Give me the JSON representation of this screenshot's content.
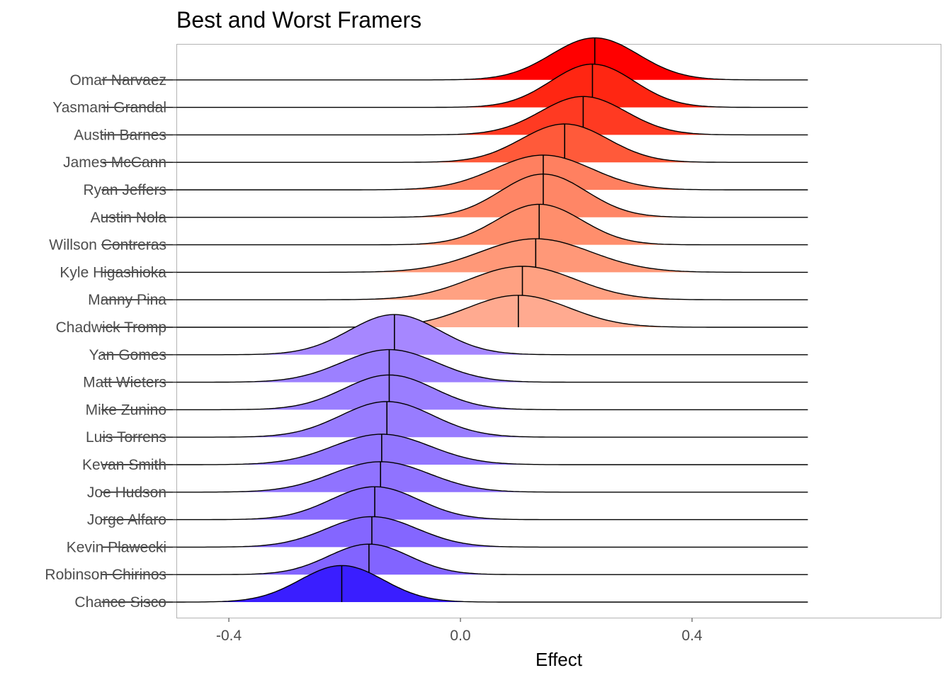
{
  "chart_data": {
    "type": "ridgeline",
    "title": "Best and Worst Framers",
    "xlabel": "Effect",
    "ylabel": "",
    "xlim": [
      -0.49,
      0.83
    ],
    "x_ticks": [
      -0.4,
      0.0,
      0.4
    ],
    "x_tick_labels": [
      "-0.4",
      "0.0",
      "0.4"
    ],
    "support": [
      -0.62,
      0.6
    ],
    "grid": false,
    "legend": "none",
    "line_color": "#000000",
    "series": [
      {
        "name": "Chance Sisco",
        "median": -0.205,
        "sd": 0.072,
        "peak": 1.2,
        "color": "#3a1eff"
      },
      {
        "name": "Robinson Chirinos",
        "median": -0.158,
        "sd": 0.07,
        "peak": 1.0,
        "color": "#8264ff"
      },
      {
        "name": "Kevin Plawecki",
        "median": -0.153,
        "sd": 0.078,
        "peak": 1.0,
        "color": "#8466ff"
      },
      {
        "name": "Jorge Alfaro",
        "median": -0.148,
        "sd": 0.076,
        "peak": 1.08,
        "color": "#8a6cff"
      },
      {
        "name": "Joe Hudson",
        "median": -0.138,
        "sd": 0.084,
        "peak": 1.0,
        "color": "#9073ff"
      },
      {
        "name": "Kevan Smith",
        "median": -0.136,
        "sd": 0.084,
        "peak": 1.0,
        "color": "#9276ff"
      },
      {
        "name": "Luis Torrens",
        "median": -0.127,
        "sd": 0.08,
        "peak": 1.17,
        "color": "#987cff"
      },
      {
        "name": "Mike Zunino",
        "median": -0.123,
        "sd": 0.078,
        "peak": 1.14,
        "color": "#9a7eff"
      },
      {
        "name": "Matt Wieters",
        "median": -0.123,
        "sd": 0.082,
        "peak": 1.07,
        "color": "#9c80ff"
      },
      {
        "name": "Yan Gomes",
        "median": -0.114,
        "sd": 0.078,
        "peak": 1.32,
        "color": "#a687ff"
      },
      {
        "name": "Chadwick Tromp",
        "median": 0.1,
        "sd": 0.088,
        "peak": 1.05,
        "color": "#ffaa90"
      },
      {
        "name": "Manny Pina",
        "median": 0.107,
        "sd": 0.092,
        "peak": 1.1,
        "color": "#ffa182"
      },
      {
        "name": "Kyle Higashioka",
        "median": 0.13,
        "sd": 0.096,
        "peak": 1.1,
        "color": "#ff9878"
      },
      {
        "name": "Willson Contreras",
        "median": 0.136,
        "sd": 0.074,
        "peak": 1.33,
        "color": "#ff8e6c"
      },
      {
        "name": "Austin Nola",
        "median": 0.143,
        "sd": 0.074,
        "peak": 1.42,
        "color": "#ff8666"
      },
      {
        "name": "Ryan Jeffers",
        "median": 0.143,
        "sd": 0.084,
        "peak": 1.14,
        "color": "#ff8060"
      },
      {
        "name": "James McCann",
        "median": 0.18,
        "sd": 0.075,
        "peak": 1.26,
        "color": "#ff5a3a"
      },
      {
        "name": "Austin Barnes",
        "median": 0.212,
        "sd": 0.074,
        "peak": 1.26,
        "color": "#ff3a22"
      },
      {
        "name": "Yasmani Grandal",
        "median": 0.228,
        "sd": 0.072,
        "peak": 1.42,
        "color": "#ff2612"
      },
      {
        "name": "Omar Narvaez",
        "median": 0.232,
        "sd": 0.075,
        "peak": 1.38,
        "color": "#ff0000"
      }
    ]
  }
}
